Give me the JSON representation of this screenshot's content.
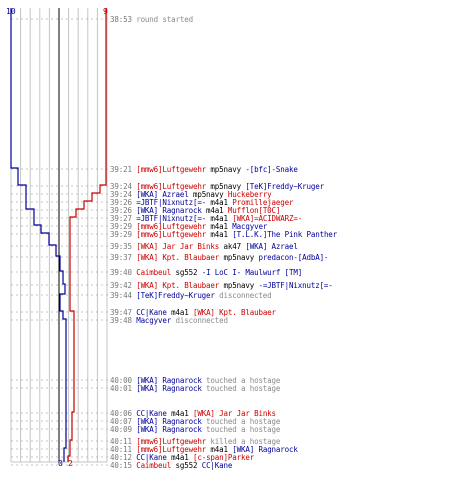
{
  "palette": {
    "red_team": "#cc0000",
    "blue_team": "#00009a",
    "neutral": "#8a8a8a",
    "time": "#777777"
  },
  "scores": {
    "blue_start": "10",
    "red_start": "9",
    "blue_end": "0",
    "red_end": "2"
  },
  "log": [
    {
      "time": "38:53",
      "segments": [
        {
          "text": "round started",
          "color": "gray"
        }
      ]
    },
    {
      "time": "39:21",
      "segments": [
        {
          "text": "[mmw6]Luftgewehr",
          "color": "red"
        },
        {
          "text": " mp5navy ",
          "color": "black"
        },
        {
          "text": "-[bfc]-Snake",
          "color": "blue"
        }
      ]
    },
    {
      "time": "39:24",
      "segments": [
        {
          "text": "[mmw6]Luftgewehr",
          "color": "red"
        },
        {
          "text": " mp5navy ",
          "color": "black"
        },
        {
          "text": "[TeK]Freddy~Kruger",
          "color": "blue"
        }
      ]
    },
    {
      "time": "39:24",
      "segments": [
        {
          "text": "[WKA] Azrael",
          "color": "blue"
        },
        {
          "text": " mp5navy ",
          "color": "black"
        },
        {
          "text": "Huckeberry",
          "color": "red"
        }
      ]
    },
    {
      "time": "39:26",
      "segments": [
        {
          "text": "=JBTF|Nixnutz[=-",
          "color": "blue"
        },
        {
          "text": " m4a1 ",
          "color": "black"
        },
        {
          "text": "Promillejaeger",
          "color": "red"
        }
      ]
    },
    {
      "time": "39:26",
      "segments": [
        {
          "text": "[WKA] Ragnarock",
          "color": "blue"
        },
        {
          "text": " m4a1 ",
          "color": "black"
        },
        {
          "text": "Mufflon[T0C]",
          "color": "red"
        }
      ]
    },
    {
      "time": "39:27",
      "segments": [
        {
          "text": "=JBTF|Nixnutz[=-",
          "color": "blue"
        },
        {
          "text": " m4a1 ",
          "color": "black"
        },
        {
          "text": "[WKA]=ACIDWARZ=-",
          "color": "red"
        }
      ]
    },
    {
      "time": "39:29",
      "segments": [
        {
          "text": "[mmw6]Luftgewehr",
          "color": "red"
        },
        {
          "text": " m4a1 ",
          "color": "black"
        },
        {
          "text": "Macgyver",
          "color": "blue"
        }
      ]
    },
    {
      "time": "39:29",
      "segments": [
        {
          "text": "[mmw6]Luftgewehr",
          "color": "red"
        },
        {
          "text": " m4a1 ",
          "color": "black"
        },
        {
          "text": "[T.L.K.]The Pink Panther",
          "color": "blue"
        }
      ]
    },
    {
      "time": "39:35",
      "segments": [
        {
          "text": "[WKA] Jar Jar Binks",
          "color": "red"
        },
        {
          "text": " ak47 ",
          "color": "black"
        },
        {
          "text": "[WKA] Azrael",
          "color": "blue"
        }
      ]
    },
    {
      "time": "39:37",
      "segments": [
        {
          "text": "[WKA] Kpt. Blaubaer",
          "color": "red"
        },
        {
          "text": " mp5navy ",
          "color": "black"
        },
        {
          "text": "predacon-[AdbA]-",
          "color": "blue"
        }
      ]
    },
    {
      "time": "39:40",
      "segments": [
        {
          "text": "Caimbeul",
          "color": "red"
        },
        {
          "text": " sg552 ",
          "color": "black"
        },
        {
          "text": "-I LoC I- Maulwurf [TM]",
          "color": "blue"
        }
      ]
    },
    {
      "time": "39:42",
      "segments": [
        {
          "text": "[WKA] Kpt. Blaubaer",
          "color": "red"
        },
        {
          "text": " mp5navy ",
          "color": "black"
        },
        {
          "text": "-=JBTF|Nixnutz[=-",
          "color": "blue"
        }
      ]
    },
    {
      "time": "39:44",
      "segments": [
        {
          "text": "[TeK]Freddy~Kruger",
          "color": "blue"
        },
        {
          "text": " disconnected",
          "color": "gray"
        }
      ]
    },
    {
      "time": "39:47",
      "segments": [
        {
          "text": "CC|Kane",
          "color": "blue"
        },
        {
          "text": " m4a1 ",
          "color": "black"
        },
        {
          "text": "[WKA] Kpt. Blaubaer",
          "color": "red"
        }
      ]
    },
    {
      "time": "39:48",
      "segments": [
        {
          "text": "Macgyver",
          "color": "blue"
        },
        {
          "text": " disconnected",
          "color": "gray"
        }
      ]
    },
    {
      "time": "40:00",
      "segments": [
        {
          "text": "[WKA] Ragnarock",
          "color": "blue"
        },
        {
          "text": " touched a hostage",
          "color": "gray"
        }
      ]
    },
    {
      "time": "40:01",
      "segments": [
        {
          "text": "[WKA] Ragnarock",
          "color": "blue"
        },
        {
          "text": " touched a hostage",
          "color": "gray"
        }
      ]
    },
    {
      "time": "40:06",
      "segments": [
        {
          "text": "CC|Kane",
          "color": "blue"
        },
        {
          "text": " m4a1 ",
          "color": "black"
        },
        {
          "text": "[WKA] Jar Jar Binks",
          "color": "red"
        }
      ]
    },
    {
      "time": "40:07",
      "segments": [
        {
          "text": "[WKA] Ragnarock",
          "color": "blue"
        },
        {
          "text": " touched a hostage",
          "color": "gray"
        }
      ]
    },
    {
      "time": "40:09",
      "segments": [
        {
          "text": "[WKA] Ragnarock",
          "color": "blue"
        },
        {
          "text": " touched a hostage",
          "color": "gray"
        }
      ]
    },
    {
      "time": "40:11",
      "segments": [
        {
          "text": "[mmw6]Luftgewehr",
          "color": "red"
        },
        {
          "text": " killed a hostage",
          "color": "gray"
        }
      ]
    },
    {
      "time": "40:11",
      "segments": [
        {
          "text": "[mmw6]Luftgewehr",
          "color": "red"
        },
        {
          "text": " m4a1 ",
          "color": "black"
        },
        {
          "text": "[WKA] Ragnarock",
          "color": "blue"
        }
      ]
    },
    {
      "time": "40:12",
      "segments": [
        {
          "text": "CC|Kane",
          "color": "blue"
        },
        {
          "text": " m4a1 ",
          "color": "black"
        },
        {
          "text": "[c-span]Parker",
          "color": "red"
        }
      ]
    },
    {
      "time": "40:15",
      "segments": [
        {
          "text": "Caimbeul",
          "color": "red"
        },
        {
          "text": " sg552 ",
          "color": "black"
        },
        {
          "text": "CC|Kane",
          "color": "blue"
        }
      ]
    }
  ]
}
